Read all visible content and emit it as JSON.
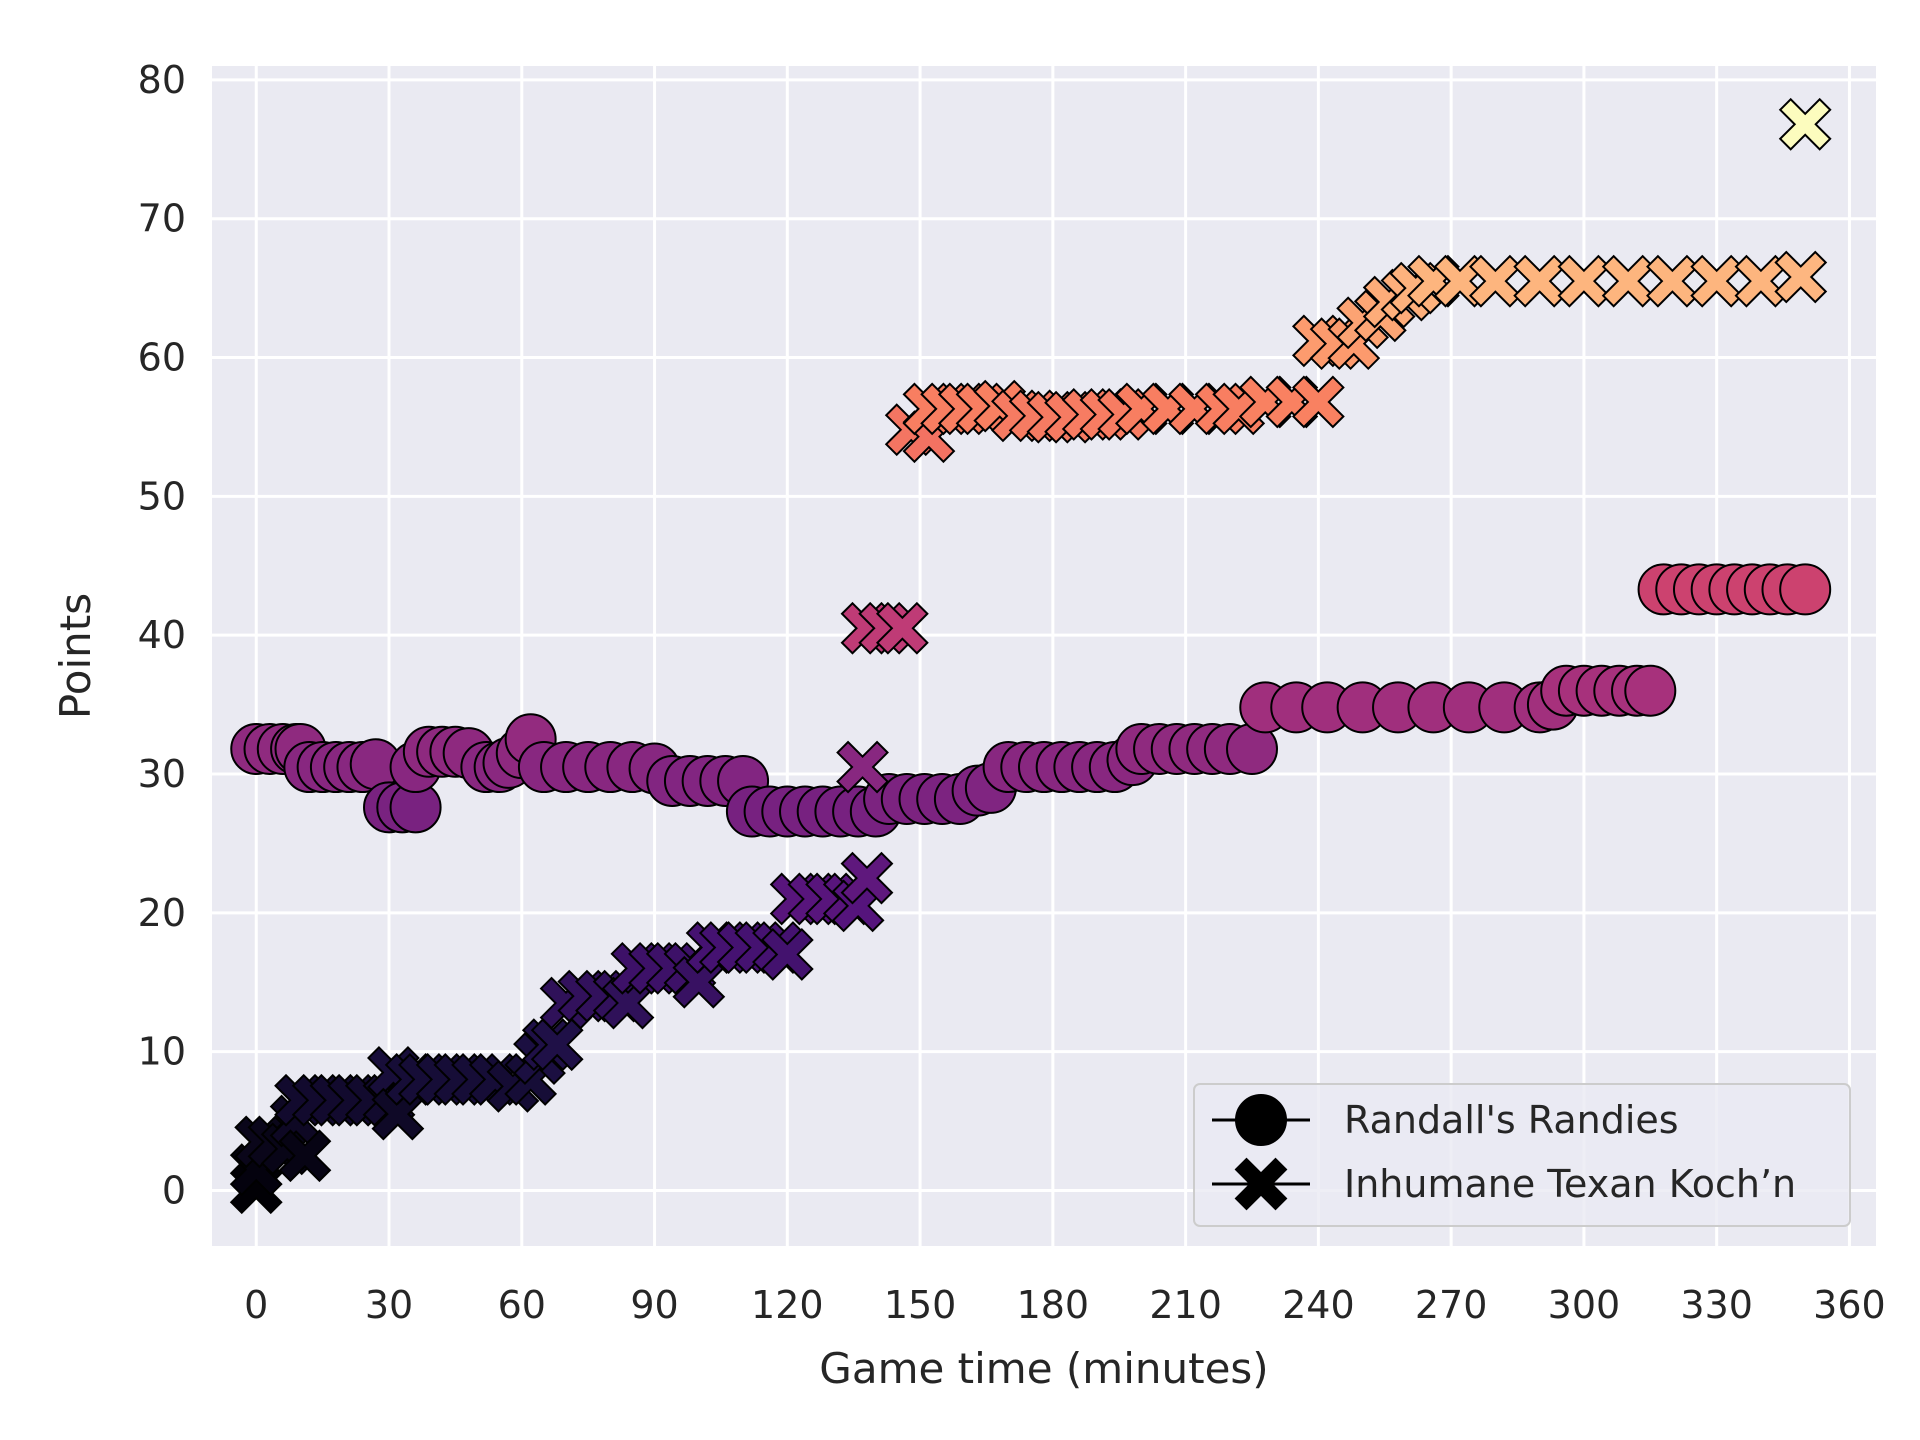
{
  "chart_data": {
    "type": "scatter",
    "xlabel": "Game time (minutes)",
    "ylabel": "Points",
    "xlim": [
      -10,
      366
    ],
    "ylim": [
      -4,
      81
    ],
    "xticks": [
      0,
      30,
      60,
      90,
      120,
      150,
      180,
      210,
      240,
      270,
      300,
      330,
      360
    ],
    "yticks": [
      0,
      10,
      20,
      30,
      40,
      50,
      60,
      70,
      80
    ],
    "grid": true,
    "background": "#eaeaf2",
    "legend": {
      "placement": "lower-right",
      "entries": [
        {
          "label": "Randall's Randies",
          "marker": "circle"
        },
        {
          "label": "Inhumane Texan Koch’n",
          "marker": "x"
        }
      ]
    },
    "colormap": "magma",
    "series": [
      {
        "name": "Randall's Randies",
        "marker": "circle",
        "points": [
          [
            0,
            31.8
          ],
          [
            3,
            31.8
          ],
          [
            6,
            31.8
          ],
          [
            9,
            31.8
          ],
          [
            10,
            31.8
          ],
          [
            12,
            30.5
          ],
          [
            15,
            30.5
          ],
          [
            18,
            30.5
          ],
          [
            21,
            30.5
          ],
          [
            24,
            30.5
          ],
          [
            27,
            30.7
          ],
          [
            30,
            27.6
          ],
          [
            33,
            27.6
          ],
          [
            36,
            27.6
          ],
          [
            36,
            30.5
          ],
          [
            39,
            31.6
          ],
          [
            42,
            31.6
          ],
          [
            45,
            31.6
          ],
          [
            48,
            31.5
          ],
          [
            52,
            30.5
          ],
          [
            55,
            30.5
          ],
          [
            57,
            30.8
          ],
          [
            60,
            31.5
          ],
          [
            62,
            32.5
          ],
          [
            65,
            30.5
          ],
          [
            70,
            30.5
          ],
          [
            75,
            30.5
          ],
          [
            80,
            30.5
          ],
          [
            85,
            30.5
          ],
          [
            90,
            30.4
          ],
          [
            94,
            29.5
          ],
          [
            98,
            29.5
          ],
          [
            102,
            29.5
          ],
          [
            106,
            29.5
          ],
          [
            110,
            29.5
          ],
          [
            112,
            27.3
          ],
          [
            116,
            27.3
          ],
          [
            120,
            27.3
          ],
          [
            124,
            27.3
          ],
          [
            128,
            27.3
          ],
          [
            132,
            27.3
          ],
          [
            136,
            27.3
          ],
          [
            140,
            27.3
          ],
          [
            143,
            28.2
          ],
          [
            147,
            28.2
          ],
          [
            151,
            28.2
          ],
          [
            155,
            28.2
          ],
          [
            159,
            28.2
          ],
          [
            163,
            28.8
          ],
          [
            166,
            29
          ],
          [
            170,
            30.5
          ],
          [
            174,
            30.5
          ],
          [
            178,
            30.5
          ],
          [
            182,
            30.5
          ],
          [
            186,
            30.5
          ],
          [
            190,
            30.5
          ],
          [
            194,
            30.5
          ],
          [
            198,
            31
          ],
          [
            200,
            31.8
          ],
          [
            204,
            31.8
          ],
          [
            208,
            31.8
          ],
          [
            212,
            31.8
          ],
          [
            216,
            31.8
          ],
          [
            220,
            31.8
          ],
          [
            225,
            31.8
          ],
          [
            228,
            34.8
          ],
          [
            235,
            34.8
          ],
          [
            242,
            34.8
          ],
          [
            250,
            34.8
          ],
          [
            258,
            34.8
          ],
          [
            266,
            34.8
          ],
          [
            274,
            34.8
          ],
          [
            282,
            34.8
          ],
          [
            290,
            34.8
          ],
          [
            293,
            35
          ],
          [
            296,
            36
          ],
          [
            300,
            36
          ],
          [
            304,
            36
          ],
          [
            308,
            36
          ],
          [
            312,
            36
          ],
          [
            315,
            36
          ],
          [
            318,
            43.3
          ],
          [
            322,
            43.3
          ],
          [
            326,
            43.3
          ],
          [
            330,
            43.3
          ],
          [
            334,
            43.3
          ],
          [
            338,
            43.3
          ],
          [
            342,
            43.3
          ],
          [
            346,
            43.3
          ],
          [
            350,
            43.3
          ]
        ]
      },
      {
        "name": "Inhumane Texan Koch’n",
        "marker": "x",
        "points": [
          [
            0,
            0.2
          ],
          [
            0,
            1.5
          ],
          [
            1,
            3.5
          ],
          [
            4,
            3.5
          ],
          [
            7,
            3
          ],
          [
            9,
            5
          ],
          [
            11,
            2.5
          ],
          [
            10,
            6.5
          ],
          [
            14,
            6.5
          ],
          [
            18,
            6.5
          ],
          [
            22,
            6.5
          ],
          [
            26,
            6.5
          ],
          [
            30,
            6.5
          ],
          [
            31,
            8.5
          ],
          [
            32,
            5.5
          ],
          [
            35,
            8
          ],
          [
            38,
            8
          ],
          [
            42,
            8
          ],
          [
            46,
            8
          ],
          [
            50,
            8
          ],
          [
            54,
            8
          ],
          [
            58,
            7.5
          ],
          [
            62,
            8
          ],
          [
            64,
            9.5
          ],
          [
            66,
            10.5
          ],
          [
            68,
            10.5
          ],
          [
            70,
            13.5
          ],
          [
            74,
            14
          ],
          [
            78,
            14
          ],
          [
            82,
            14
          ],
          [
            84,
            13.5
          ],
          [
            86,
            16
          ],
          [
            90,
            16
          ],
          [
            94,
            16
          ],
          [
            98,
            16
          ],
          [
            100,
            15
          ],
          [
            103,
            17.5
          ],
          [
            106,
            17.5
          ],
          [
            110,
            17.5
          ],
          [
            114,
            17.5
          ],
          [
            118,
            17.5
          ],
          [
            120,
            17
          ],
          [
            122,
            21
          ],
          [
            126,
            21
          ],
          [
            130,
            21
          ],
          [
            134,
            21
          ],
          [
            136,
            20.5
          ],
          [
            138,
            22.5
          ],
          [
            137,
            30.5
          ],
          [
            138,
            40.5
          ],
          [
            142,
            40.5
          ],
          [
            146,
            40.5
          ],
          [
            148,
            54.8
          ],
          [
            152,
            54.3
          ],
          [
            152,
            56.3
          ],
          [
            156,
            56.3
          ],
          [
            160,
            56.3
          ],
          [
            164,
            56.3
          ],
          [
            168,
            56.5
          ],
          [
            172,
            55.8
          ],
          [
            176,
            55.8
          ],
          [
            180,
            55.7
          ],
          [
            184,
            55.7
          ],
          [
            188,
            55.9
          ],
          [
            192,
            55.9
          ],
          [
            196,
            55.9
          ],
          [
            200,
            56.3
          ],
          [
            206,
            56.3
          ],
          [
            212,
            56.3
          ],
          [
            218,
            56.3
          ],
          [
            222,
            56.3
          ],
          [
            228,
            56.8
          ],
          [
            234,
            56.8
          ],
          [
            240,
            56.8
          ],
          [
            240,
            61.2
          ],
          [
            244,
            61
          ],
          [
            248,
            61
          ],
          [
            250,
            62.5
          ],
          [
            254,
            63
          ],
          [
            256,
            64
          ],
          [
            260,
            64.5
          ],
          [
            262,
            65
          ],
          [
            266,
            65.5
          ],
          [
            272,
            65.5
          ],
          [
            280,
            65.5
          ],
          [
            290,
            65.5
          ],
          [
            300,
            65.5
          ],
          [
            310,
            65.5
          ],
          [
            320,
            65.5
          ],
          [
            330,
            65.5
          ],
          [
            340,
            65.5
          ],
          [
            349,
            65.8
          ],
          [
            350,
            76.8
          ]
        ]
      }
    ]
  }
}
